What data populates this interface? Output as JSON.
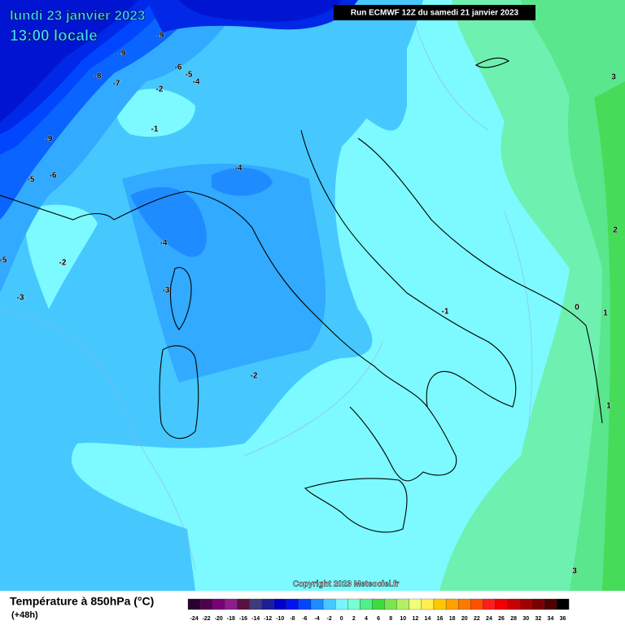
{
  "header": {
    "date": "lundi 23 janvier 2023",
    "time": "13:00 locale",
    "run": "Run ECMWF 12Z du samedi 21 janvier 2023"
  },
  "copyright": "Copyright 2023 Meteociel.fr",
  "legend": {
    "title": "Température à 850hPa (°C)",
    "lead": "(+48h)",
    "labels": [
      -24,
      -22,
      -20,
      -18,
      -16,
      -14,
      -12,
      -10,
      -8,
      -6,
      -4,
      -2,
      0,
      2,
      4,
      6,
      8,
      10,
      12,
      14,
      16,
      18,
      20,
      22,
      24,
      26,
      28,
      30,
      32,
      34,
      36
    ],
    "colors": [
      "#2a0030",
      "#500050",
      "#780078",
      "#8c1e8c",
      "#5a1040",
      "#3c3c78",
      "#1e1e96",
      "#0000c8",
      "#0014f0",
      "#0046ff",
      "#1e8cff",
      "#46c8ff",
      "#78f5ff",
      "#78ffd2",
      "#50f08c",
      "#3cdc3c",
      "#78e650",
      "#b4f064",
      "#f0ff78",
      "#fff050",
      "#ffc800",
      "#ffa000",
      "#ff7800",
      "#ff5000",
      "#ff1e1e",
      "#f00000",
      "#c80000",
      "#a00000",
      "#780000",
      "#500000",
      "#000000"
    ]
  },
  "contour_labels": [
    -9,
    -9,
    -8,
    -7,
    -6,
    -5,
    -4,
    -2,
    -1,
    -9,
    -5,
    -6,
    -4,
    -4,
    -3,
    -2,
    -5,
    -3,
    -2,
    -1,
    0,
    1,
    1,
    2,
    3,
    3
  ]
}
